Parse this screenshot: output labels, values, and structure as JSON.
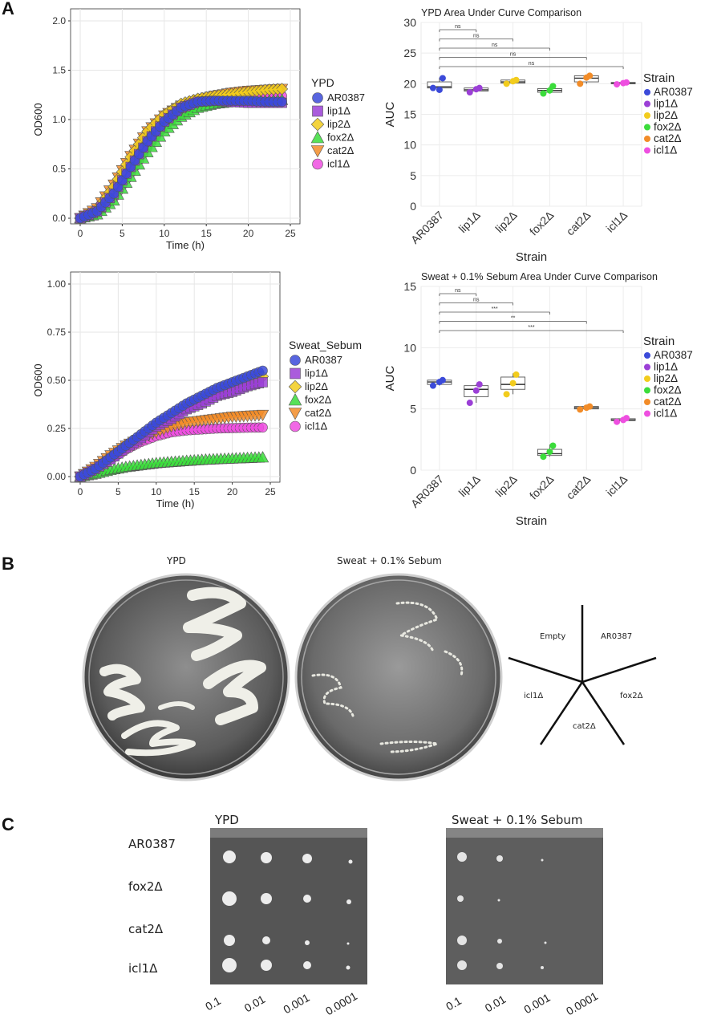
{
  "panels": {
    "a": "A",
    "b": "B",
    "c": "C"
  },
  "strain_colors": {
    "AR0387": "#3b4ad9",
    "lip1Δ": "#9b3fd6",
    "lip2Δ": "#f2cc1d",
    "fox2Δ": "#3bdc3b",
    "cat2Δ": "#f28c28",
    "icl1Δ": "#ee4fe0"
  },
  "chart_data": [
    {
      "type": "line",
      "xlabel": "Time (h)",
      "ylabel": "OD600",
      "xlim": [
        0,
        25
      ],
      "ylim": [
        0,
        2.0
      ],
      "xticks": [
        "0",
        "5",
        "10",
        "15",
        "20",
        "25"
      ],
      "yticks": [
        "0.0",
        "0.5",
        "1.0",
        "1.5",
        "2.0"
      ],
      "legend_title": "YPD",
      "legend_position": "right",
      "grid": true,
      "x": [
        0,
        2,
        4,
        6,
        8,
        10,
        12,
        14,
        16,
        18,
        20,
        22,
        24
      ],
      "series": [
        {
          "name": "AR0387",
          "marker": "circle",
          "values": [
            0.0,
            0.07,
            0.25,
            0.52,
            0.78,
            0.98,
            1.12,
            1.18,
            1.19,
            1.19,
            1.19,
            1.18,
            1.18
          ]
        },
        {
          "name": "lip1Δ",
          "marker": "square",
          "values": [
            0.0,
            0.07,
            0.25,
            0.52,
            0.78,
            0.98,
            1.12,
            1.18,
            1.19,
            1.18,
            1.17,
            1.17,
            1.17
          ]
        },
        {
          "name": "lip2Δ",
          "marker": "diamond",
          "values": [
            0.0,
            0.09,
            0.32,
            0.62,
            0.88,
            1.05,
            1.16,
            1.21,
            1.24,
            1.26,
            1.28,
            1.3,
            1.31
          ]
        },
        {
          "name": "fox2Δ",
          "marker": "triangle-up",
          "values": [
            0.0,
            0.04,
            0.18,
            0.42,
            0.67,
            0.88,
            1.03,
            1.12,
            1.16,
            1.18,
            1.19,
            1.19,
            1.2
          ]
        },
        {
          "name": "cat2Δ",
          "marker": "triangle-down",
          "values": [
            0.0,
            0.1,
            0.34,
            0.63,
            0.88,
            1.04,
            1.14,
            1.2,
            1.24,
            1.27,
            1.29,
            1.3,
            1.31
          ]
        },
        {
          "name": "icl1Δ",
          "marker": "circle",
          "values": [
            0.0,
            0.05,
            0.21,
            0.46,
            0.72,
            0.94,
            1.09,
            1.17,
            1.2,
            1.21,
            1.22,
            1.23,
            1.24
          ]
        }
      ]
    },
    {
      "type": "box",
      "title": "YPD Area Under Curve Comparison",
      "xlabel": "Strain",
      "ylabel": "AUC",
      "ylim": [
        0,
        30
      ],
      "yticks": [
        "0",
        "5",
        "10",
        "15",
        "20",
        "25",
        "30"
      ],
      "categories": [
        "AR0387",
        "lip1Δ",
        "lip2Δ",
        "fox2Δ",
        "cat2Δ",
        "icl1Δ"
      ],
      "legend_title": "Strain",
      "legend_position": "right",
      "boxes": [
        {
          "q1": 19.3,
          "median": 19.5,
          "q3": 20.3,
          "min": 19.0,
          "max": 21.0,
          "points": [
            20.9,
            19.3,
            19.0
          ]
        },
        {
          "q1": 18.8,
          "median": 19.0,
          "q3": 19.3,
          "min": 18.6,
          "max": 19.4,
          "points": [
            19.3,
            18.6,
            19.1
          ]
        },
        {
          "q1": 20.1,
          "median": 20.3,
          "q3": 20.6,
          "min": 20.0,
          "max": 20.7,
          "points": [
            20.6,
            20.0,
            20.4
          ]
        },
        {
          "q1": 18.6,
          "median": 18.9,
          "q3": 19.2,
          "min": 18.4,
          "max": 19.6,
          "points": [
            19.6,
            18.4,
            18.9
          ]
        },
        {
          "q1": 20.3,
          "median": 20.9,
          "q3": 21.3,
          "min": 20.0,
          "max": 21.4,
          "points": [
            21.3,
            20.0,
            21.0
          ]
        },
        {
          "q1": 20.0,
          "median": 20.1,
          "q3": 20.2,
          "min": 19.9,
          "max": 20.3,
          "points": [
            20.2,
            19.9,
            20.1
          ]
        }
      ],
      "significance": [
        {
          "from": 0,
          "to": 1,
          "label": "ns"
        },
        {
          "from": 0,
          "to": 2,
          "label": "ns"
        },
        {
          "from": 0,
          "to": 3,
          "label": "ns"
        },
        {
          "from": 0,
          "to": 4,
          "label": "ns"
        },
        {
          "from": 0,
          "to": 5,
          "label": "ns"
        }
      ]
    },
    {
      "type": "line",
      "xlabel": "Time (h)",
      "ylabel": "OD600",
      "xlim": [
        0,
        25
      ],
      "ylim": [
        0,
        1.0
      ],
      "xticks": [
        "0",
        "5",
        "10",
        "15",
        "20",
        "25"
      ],
      "yticks": [
        "0.00",
        "0.25",
        "0.50",
        "0.75",
        "1.00"
      ],
      "legend_title": "Sweat_Sebum",
      "legend_position": "right",
      "grid": true,
      "x": [
        0,
        2,
        4,
        6,
        8,
        10,
        12,
        14,
        16,
        18,
        20,
        22,
        24
      ],
      "series": [
        {
          "name": "AR0387",
          "marker": "circle",
          "values": [
            0.0,
            0.04,
            0.1,
            0.16,
            0.22,
            0.28,
            0.33,
            0.38,
            0.42,
            0.46,
            0.49,
            0.52,
            0.55
          ]
        },
        {
          "name": "lip1Δ",
          "marker": "square",
          "values": [
            0.0,
            0.04,
            0.09,
            0.15,
            0.2,
            0.26,
            0.3,
            0.35,
            0.38,
            0.42,
            0.44,
            0.47,
            0.49
          ]
        },
        {
          "name": "lip2Δ",
          "marker": "diamond",
          "values": [
            0.0,
            0.04,
            0.1,
            0.16,
            0.21,
            0.27,
            0.31,
            0.36,
            0.4,
            0.44,
            0.47,
            0.5,
            0.52
          ]
        },
        {
          "name": "fox2Δ",
          "marker": "triangle-up",
          "values": [
            0.0,
            0.015,
            0.035,
            0.05,
            0.06,
            0.07,
            0.076,
            0.082,
            0.087,
            0.091,
            0.094,
            0.097,
            0.1
          ]
        },
        {
          "name": "cat2Δ",
          "marker": "triangle-down",
          "values": [
            0.0,
            0.05,
            0.11,
            0.16,
            0.2,
            0.23,
            0.26,
            0.28,
            0.29,
            0.3,
            0.31,
            0.315,
            0.32
          ]
        },
        {
          "name": "icl1Δ",
          "marker": "circle",
          "values": [
            0.0,
            0.03,
            0.09,
            0.14,
            0.18,
            0.21,
            0.23,
            0.24,
            0.245,
            0.25,
            0.252,
            0.254,
            0.255
          ]
        }
      ]
    },
    {
      "type": "box",
      "title": "Sweat + 0.1% Sebum Area Under Curve Comparison",
      "xlabel": "Strain",
      "ylabel": "AUC",
      "ylim": [
        0,
        15
      ],
      "yticks": [
        "0",
        "5",
        "10",
        "15"
      ],
      "categories": [
        "AR0387",
        "lip1Δ",
        "lip2Δ",
        "fox2Δ",
        "cat2Δ",
        "icl1Δ"
      ],
      "legend_title": "Strain",
      "legend_position": "right",
      "boxes": [
        {
          "q1": 7.0,
          "median": 7.2,
          "q3": 7.35,
          "min": 6.9,
          "max": 7.4,
          "points": [
            7.35,
            6.9,
            7.2
          ]
        },
        {
          "q1": 6.0,
          "median": 6.6,
          "q3": 6.9,
          "min": 5.5,
          "max": 7.0,
          "points": [
            7.0,
            5.5,
            6.5
          ]
        },
        {
          "q1": 6.6,
          "median": 7.0,
          "q3": 7.6,
          "min": 6.2,
          "max": 7.9,
          "points": [
            7.8,
            6.2,
            7.1
          ]
        },
        {
          "q1": 1.2,
          "median": 1.35,
          "q3": 1.7,
          "min": 1.1,
          "max": 2.1,
          "points": [
            2.0,
            1.1,
            1.5
          ]
        },
        {
          "q1": 5.0,
          "median": 5.1,
          "q3": 5.2,
          "min": 4.9,
          "max": 5.3,
          "points": [
            5.2,
            4.95,
            5.1
          ]
        },
        {
          "q1": 4.05,
          "median": 4.1,
          "q3": 4.2,
          "min": 3.9,
          "max": 4.3,
          "points": [
            4.25,
            3.95,
            4.1
          ]
        }
      ],
      "significance": [
        {
          "from": 0,
          "to": 1,
          "label": "ns"
        },
        {
          "from": 0,
          "to": 2,
          "label": "ns"
        },
        {
          "from": 0,
          "to": 3,
          "label": "***"
        },
        {
          "from": 0,
          "to": 4,
          "label": "**"
        },
        {
          "from": 0,
          "to": 5,
          "label": "***"
        }
      ]
    }
  ],
  "panel_b": {
    "plate_titles": [
      "YPD",
      "Sweat + 0.1% Sebum"
    ],
    "sector_labels": [
      "Empty",
      "AR0387",
      "icl1Δ",
      "fox2Δ",
      "cat2Δ"
    ]
  },
  "panel_c": {
    "plate_titles": [
      "YPD",
      "Sweat + 0.1% Sebum"
    ],
    "row_labels": [
      "AR0387",
      "fox2Δ",
      "cat2Δ",
      "icl1Δ"
    ],
    "dilutions": [
      "0.1",
      "0.01",
      "0.001",
      "0.0001"
    ]
  }
}
